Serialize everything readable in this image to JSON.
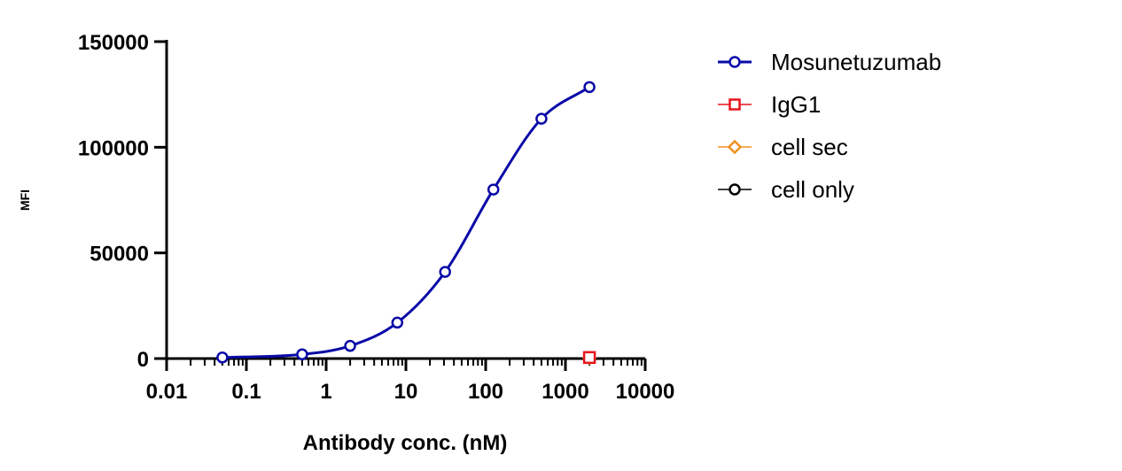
{
  "chart_data": {
    "type": "scatter",
    "xlabel": "Antibody conc. (nM)",
    "ylabel": "MFI",
    "x_scale": "log",
    "xlim": [
      0.01,
      10000
    ],
    "ylim": [
      0,
      150000
    ],
    "x_tick_labels": [
      "0.01",
      "0.1",
      "1",
      "10",
      "100",
      "1000",
      "10000"
    ],
    "y_tick_labels": [
      "0",
      "50000",
      "100000",
      "150000"
    ],
    "legend_position": "right",
    "grid": false,
    "series": [
      {
        "name": "Mosunetuzumab",
        "color": "#0a0aa8",
        "marker": "circle",
        "fit_curve": true,
        "x": [
          0.05,
          0.5,
          2,
          7.8,
          31,
          125,
          500,
          2000
        ],
        "y": [
          500,
          2000,
          6000,
          17000,
          41000,
          80000,
          113500,
          128500
        ]
      },
      {
        "name": "IgG1",
        "color": "#e8141c",
        "marker": "square",
        "fit_curve": false,
        "x": [
          2000
        ],
        "y": [
          500
        ]
      },
      {
        "name": "cell sec",
        "color": "#f0901e",
        "marker": "diamond",
        "fit_curve": false,
        "x": [
          2000
        ],
        "y": [
          300
        ]
      },
      {
        "name": "cell only",
        "color": "#000000",
        "marker": "circle",
        "fit_curve": false,
        "x": [
          2000
        ],
        "y": [
          200
        ]
      }
    ]
  }
}
